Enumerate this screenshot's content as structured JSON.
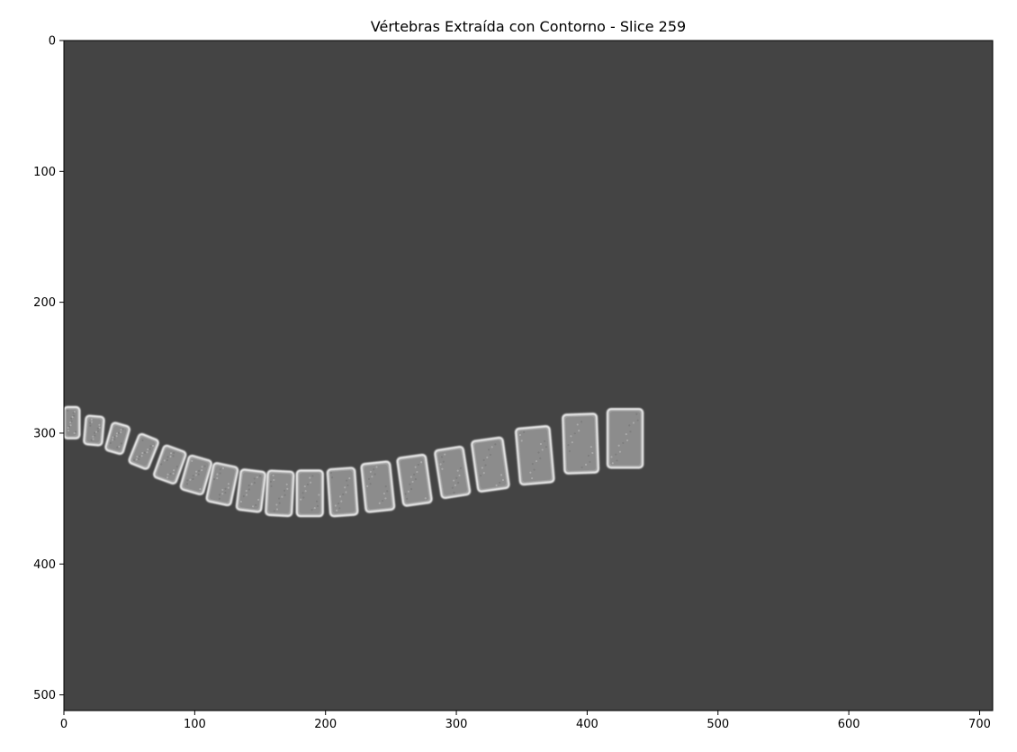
{
  "title": "Vértebras Extraída con Contorno - Slice 259",
  "image": {
    "width": 710,
    "height": 512,
    "background_color": "#444444",
    "foreground_color": "#d8d8d8",
    "edge_color": "#f2f2f2",
    "gap_color": "#4c4c4c"
  },
  "axes": {
    "x_ticks": [
      "0",
      "100",
      "200",
      "300",
      "400",
      "500",
      "600",
      "700"
    ],
    "y_ticks": [
      "0",
      "100",
      "200",
      "300",
      "400",
      "500"
    ],
    "x_tick_values": [
      0,
      100,
      200,
      300,
      400,
      500,
      600,
      700
    ],
    "y_tick_values": [
      0,
      100,
      200,
      300,
      400,
      500
    ]
  },
  "vertebrae": [
    {
      "cx": 6,
      "cy": 292,
      "w": 12,
      "h": 24,
      "angle": 0
    },
    {
      "cx": 23,
      "cy": 298,
      "w": 14,
      "h": 22,
      "angle": 5
    },
    {
      "cx": 41,
      "cy": 304,
      "w": 14,
      "h": 22,
      "angle": 16
    },
    {
      "cx": 61,
      "cy": 314,
      "w": 16,
      "h": 24,
      "angle": 22
    },
    {
      "cx": 81,
      "cy": 324,
      "w": 18,
      "h": 26,
      "angle": 20
    },
    {
      "cx": 101,
      "cy": 332,
      "w": 18,
      "h": 27,
      "angle": 16
    },
    {
      "cx": 121,
      "cy": 339,
      "w": 19,
      "h": 30,
      "angle": 12
    },
    {
      "cx": 143,
      "cy": 344,
      "w": 19,
      "h": 31,
      "angle": 7
    },
    {
      "cx": 165,
      "cy": 346,
      "w": 20,
      "h": 34,
      "angle": 3
    },
    {
      "cx": 188,
      "cy": 346,
      "w": 20,
      "h": 35,
      "angle": 0
    },
    {
      "cx": 213,
      "cy": 345,
      "w": 21,
      "h": 36,
      "angle": -4
    },
    {
      "cx": 240,
      "cy": 341,
      "w": 22,
      "h": 37,
      "angle": -6
    },
    {
      "cx": 268,
      "cy": 336,
      "w": 22,
      "h": 37,
      "angle": -8
    },
    {
      "cx": 297,
      "cy": 330,
      "w": 22,
      "h": 37,
      "angle": -9
    },
    {
      "cx": 326,
      "cy": 324,
      "w": 24,
      "h": 39,
      "angle": -8
    },
    {
      "cx": 360,
      "cy": 317,
      "w": 26,
      "h": 43,
      "angle": -5
    },
    {
      "cx": 395,
      "cy": 308,
      "w": 26,
      "h": 45,
      "angle": -2
    },
    {
      "cx": 429,
      "cy": 304,
      "w": 27,
      "h": 45,
      "angle": 0
    }
  ]
}
